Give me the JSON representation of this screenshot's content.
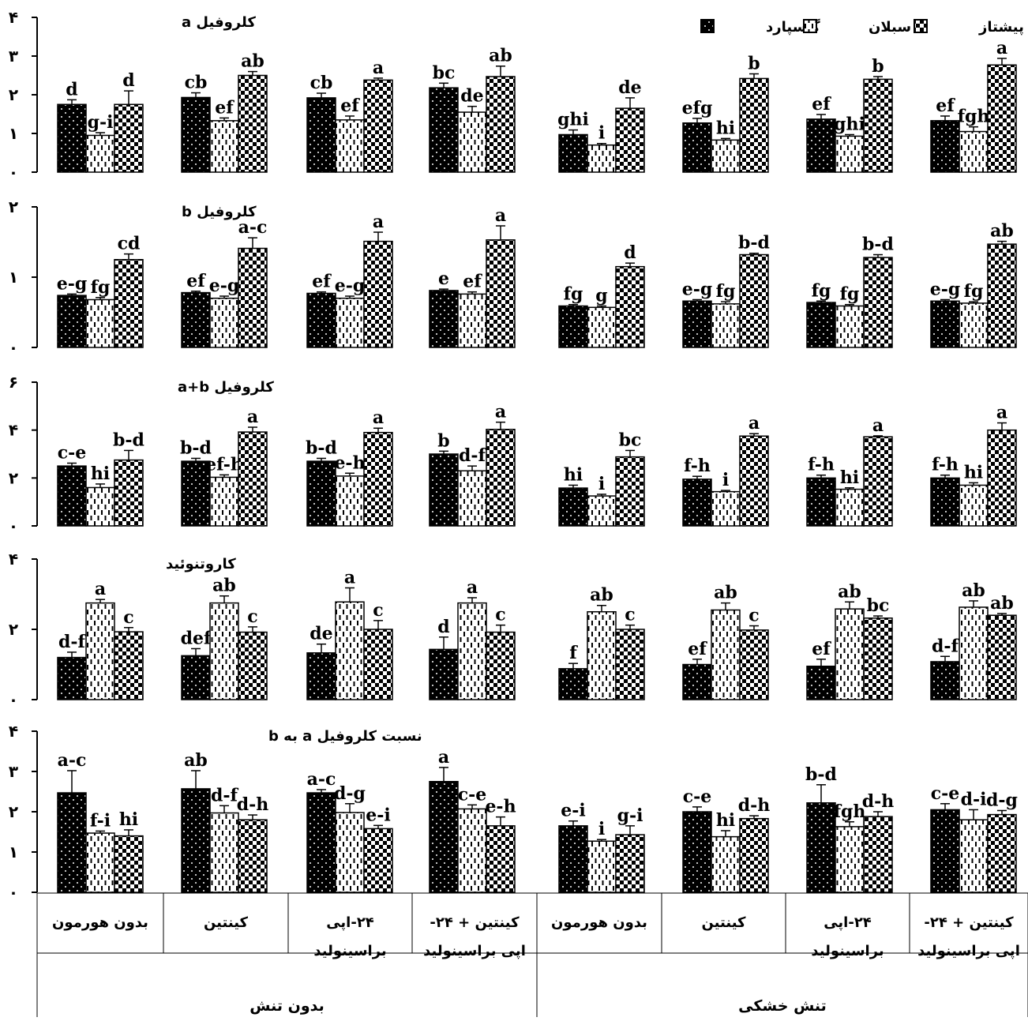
{
  "chart_data": {
    "type": "bar",
    "legend": {
      "position": "top-right",
      "entries": [
        {
          "name": "گاسپارد",
          "color": "#000000",
          "pattern": "dots"
        },
        {
          "name": "سبلان",
          "color": "#ffffff",
          "pattern": "dashes"
        },
        {
          "name": "پیشتاز",
          "color": "#000000",
          "pattern": "checker"
        }
      ]
    },
    "categories": [
      [
        "بدون هورمون"
      ],
      [
        "کینتین"
      ],
      [
        "۲۴-اپی",
        "براسینولید"
      ],
      [
        "کینتین + ۲۴-",
        "اپی براسینولید"
      ],
      [
        "بدون هورمون"
      ],
      [
        "کینتین"
      ],
      [
        "۲۴-اپی",
        "براسینولید"
      ],
      [
        "کینتین + ۲۴-",
        "اپی براسینولید"
      ]
    ],
    "groups": [
      {
        "label": "بدون تنش",
        "categories": [
          0,
          1,
          2,
          3
        ]
      },
      {
        "label": "تنش خشکی",
        "categories": [
          4,
          5,
          6,
          7
        ]
      }
    ],
    "series_names": [
      "گاسپارد",
      "سبلان",
      "پیشتاز"
    ],
    "panels": [
      {
        "title": "کلروفیل a",
        "ylim": [
          0,
          4
        ],
        "yticks": [
          "۰",
          "۱",
          "۲",
          "۳",
          "۴"
        ],
        "values": [
          [
            1.75,
            0.95,
            1.75
          ],
          [
            1.93,
            1.33,
            2.5
          ],
          [
            1.92,
            1.35,
            2.38
          ],
          [
            2.18,
            1.55,
            2.47
          ],
          [
            0.97,
            0.7,
            1.65
          ],
          [
            1.27,
            0.83,
            2.42
          ],
          [
            1.37,
            0.93,
            2.4
          ],
          [
            1.33,
            1.05,
            2.77
          ]
        ],
        "errors": [
          [
            0.12,
            0.07,
            0.35
          ],
          [
            0.12,
            0.07,
            0.1
          ],
          [
            0.12,
            0.1,
            0.05
          ],
          [
            0.12,
            0.15,
            0.27
          ],
          [
            0.12,
            0.04,
            0.27
          ],
          [
            0.12,
            0.04,
            0.12
          ],
          [
            0.12,
            0.04,
            0.07
          ],
          [
            0.12,
            0.12,
            0.17
          ]
        ],
        "letters": [
          [
            "d",
            "g-i",
            "d"
          ],
          [
            "cb",
            "ef",
            "ab"
          ],
          [
            "cb",
            "ef",
            "a"
          ],
          [
            "bc",
            "de",
            "ab"
          ],
          [
            "ghi",
            "i",
            "de"
          ],
          [
            "efg",
            "hi",
            "b"
          ],
          [
            "ef",
            "ghi",
            "b"
          ],
          [
            "ef",
            "fgh",
            "a"
          ]
        ]
      },
      {
        "title": "کلروفیل b",
        "ylim": [
          0,
          2
        ],
        "yticks": [
          "۰",
          "۱",
          "۲"
        ],
        "values": [
          [
            0.74,
            0.68,
            1.25
          ],
          [
            0.78,
            0.7,
            1.41
          ],
          [
            0.77,
            0.7,
            1.51
          ],
          [
            0.81,
            0.76,
            1.53
          ],
          [
            0.59,
            0.57,
            1.15
          ],
          [
            0.66,
            0.62,
            1.32
          ],
          [
            0.64,
            0.59,
            1.28
          ],
          [
            0.66,
            0.63,
            1.47
          ]
        ],
        "errors": [
          [
            0.02,
            0.03,
            0.08
          ],
          [
            0.02,
            0.03,
            0.15
          ],
          [
            0.02,
            0.03,
            0.13
          ],
          [
            0.02,
            0.03,
            0.2
          ],
          [
            0.02,
            0.02,
            0.05
          ],
          [
            0.02,
            0.03,
            0.02
          ],
          [
            0.02,
            0.02,
            0.04
          ],
          [
            0.02,
            0.02,
            0.04
          ]
        ],
        "letters": [
          [
            "e-g",
            "fg",
            "cd"
          ],
          [
            "ef",
            "e-g",
            "a-c"
          ],
          [
            "ef",
            "e-g",
            "a"
          ],
          [
            "e",
            "ef",
            "a"
          ],
          [
            "fg",
            "g",
            "d"
          ],
          [
            "e-g",
            "fg",
            "b-d"
          ],
          [
            "fg",
            "fg",
            "b-d"
          ],
          [
            "e-g",
            "fg",
            "ab"
          ]
        ]
      },
      {
        "title": "کلروفیل a+b",
        "ylim": [
          0,
          6
        ],
        "yticks": [
          "۰",
          "۲",
          "۴",
          "۶"
        ],
        "values": [
          [
            2.5,
            1.6,
            2.75
          ],
          [
            2.7,
            2.03,
            3.92
          ],
          [
            2.7,
            2.08,
            3.9
          ],
          [
            3.0,
            2.3,
            4.03
          ],
          [
            1.58,
            1.25,
            2.88
          ],
          [
            1.95,
            1.43,
            3.75
          ],
          [
            2.0,
            1.53,
            3.72
          ],
          [
            2.0,
            1.7,
            4.0
          ]
        ],
        "errors": [
          [
            0.12,
            0.15,
            0.4
          ],
          [
            0.12,
            0.1,
            0.2
          ],
          [
            0.12,
            0.12,
            0.18
          ],
          [
            0.12,
            0.2,
            0.3
          ],
          [
            0.12,
            0.07,
            0.27
          ],
          [
            0.12,
            0.05,
            0.1
          ],
          [
            0.12,
            0.06,
            0.04
          ],
          [
            0.12,
            0.1,
            0.3
          ]
        ],
        "letters": [
          [
            "c-e",
            "hi",
            "b-d"
          ],
          [
            "b-d",
            "ef-h",
            "a"
          ],
          [
            "b-d",
            "e-h",
            "a"
          ],
          [
            "b",
            "d-f",
            "a"
          ],
          [
            "hi",
            "i",
            "bc"
          ],
          [
            "f-h",
            "i",
            "a"
          ],
          [
            "f-h",
            "hi",
            "a"
          ],
          [
            "f-h",
            "hi",
            "a"
          ]
        ]
      },
      {
        "title": "کاروتنوئید",
        "ylim": [
          0,
          4
        ],
        "yticks": [
          "۰",
          "۲",
          "۴"
        ],
        "values": [
          [
            1.2,
            2.75,
            1.93
          ],
          [
            1.25,
            2.75,
            1.92
          ],
          [
            1.33,
            2.78,
            2.0
          ],
          [
            1.43,
            2.75,
            1.92
          ],
          [
            0.88,
            2.5,
            2.0
          ],
          [
            1.0,
            2.55,
            1.98
          ],
          [
            0.95,
            2.58,
            2.32
          ],
          [
            1.08,
            2.63,
            2.4
          ]
        ],
        "errors": [
          [
            0.15,
            0.1,
            0.12
          ],
          [
            0.2,
            0.2,
            0.15
          ],
          [
            0.25,
            0.4,
            0.25
          ],
          [
            0.35,
            0.15,
            0.2
          ],
          [
            0.15,
            0.18,
            0.12
          ],
          [
            0.15,
            0.2,
            0.12
          ],
          [
            0.2,
            0.2,
            0.06
          ],
          [
            0.15,
            0.18,
            0.05
          ]
        ],
        "letters": [
          [
            "d-f",
            "a",
            "c"
          ],
          [
            "def",
            "ab",
            "c"
          ],
          [
            "de",
            "a",
            "c"
          ],
          [
            "d",
            "a",
            "c"
          ],
          [
            "f",
            "ab",
            "c"
          ],
          [
            "ef",
            "ab",
            "c"
          ],
          [
            "ef",
            "ab",
            "bc"
          ],
          [
            "d-f",
            "ab",
            "ab"
          ]
        ]
      },
      {
        "title": "نسبت کلروفیل a به b",
        "ylim": [
          0,
          4
        ],
        "yticks": [
          "۰",
          "۱",
          "۲",
          "۳",
          "۴"
        ],
        "values": [
          [
            2.47,
            1.47,
            1.4
          ],
          [
            2.57,
            1.97,
            1.8
          ],
          [
            2.47,
            1.98,
            1.58
          ],
          [
            2.75,
            2.07,
            1.65
          ],
          [
            1.65,
            1.27,
            1.43
          ],
          [
            2.0,
            1.38,
            1.83
          ],
          [
            2.22,
            1.63,
            1.88
          ],
          [
            2.05,
            1.8,
            1.93
          ]
        ],
        "errors": [
          [
            0.55,
            0.05,
            0.15
          ],
          [
            0.45,
            0.18,
            0.12
          ],
          [
            0.08,
            0.22,
            0.08
          ],
          [
            0.35,
            0.1,
            0.22
          ],
          [
            0.12,
            0.04,
            0.22
          ],
          [
            0.12,
            0.15,
            0.07
          ],
          [
            0.45,
            0.12,
            0.12
          ],
          [
            0.15,
            0.25,
            0.1
          ]
        ],
        "letters": [
          [
            "a-c",
            "f-i",
            "hi"
          ],
          [
            "ab",
            "d-f",
            "d-h"
          ],
          [
            "a-c",
            "d-g",
            "e-i"
          ],
          [
            "a",
            "c-e",
            "e-h"
          ],
          [
            "e-i",
            "i",
            "g-i"
          ],
          [
            "c-e",
            "hi",
            "d-h"
          ],
          [
            "b-d",
            "fgh",
            "d-h"
          ],
          [
            "c-e",
            "d-i",
            "d-g"
          ]
        ]
      }
    ]
  }
}
